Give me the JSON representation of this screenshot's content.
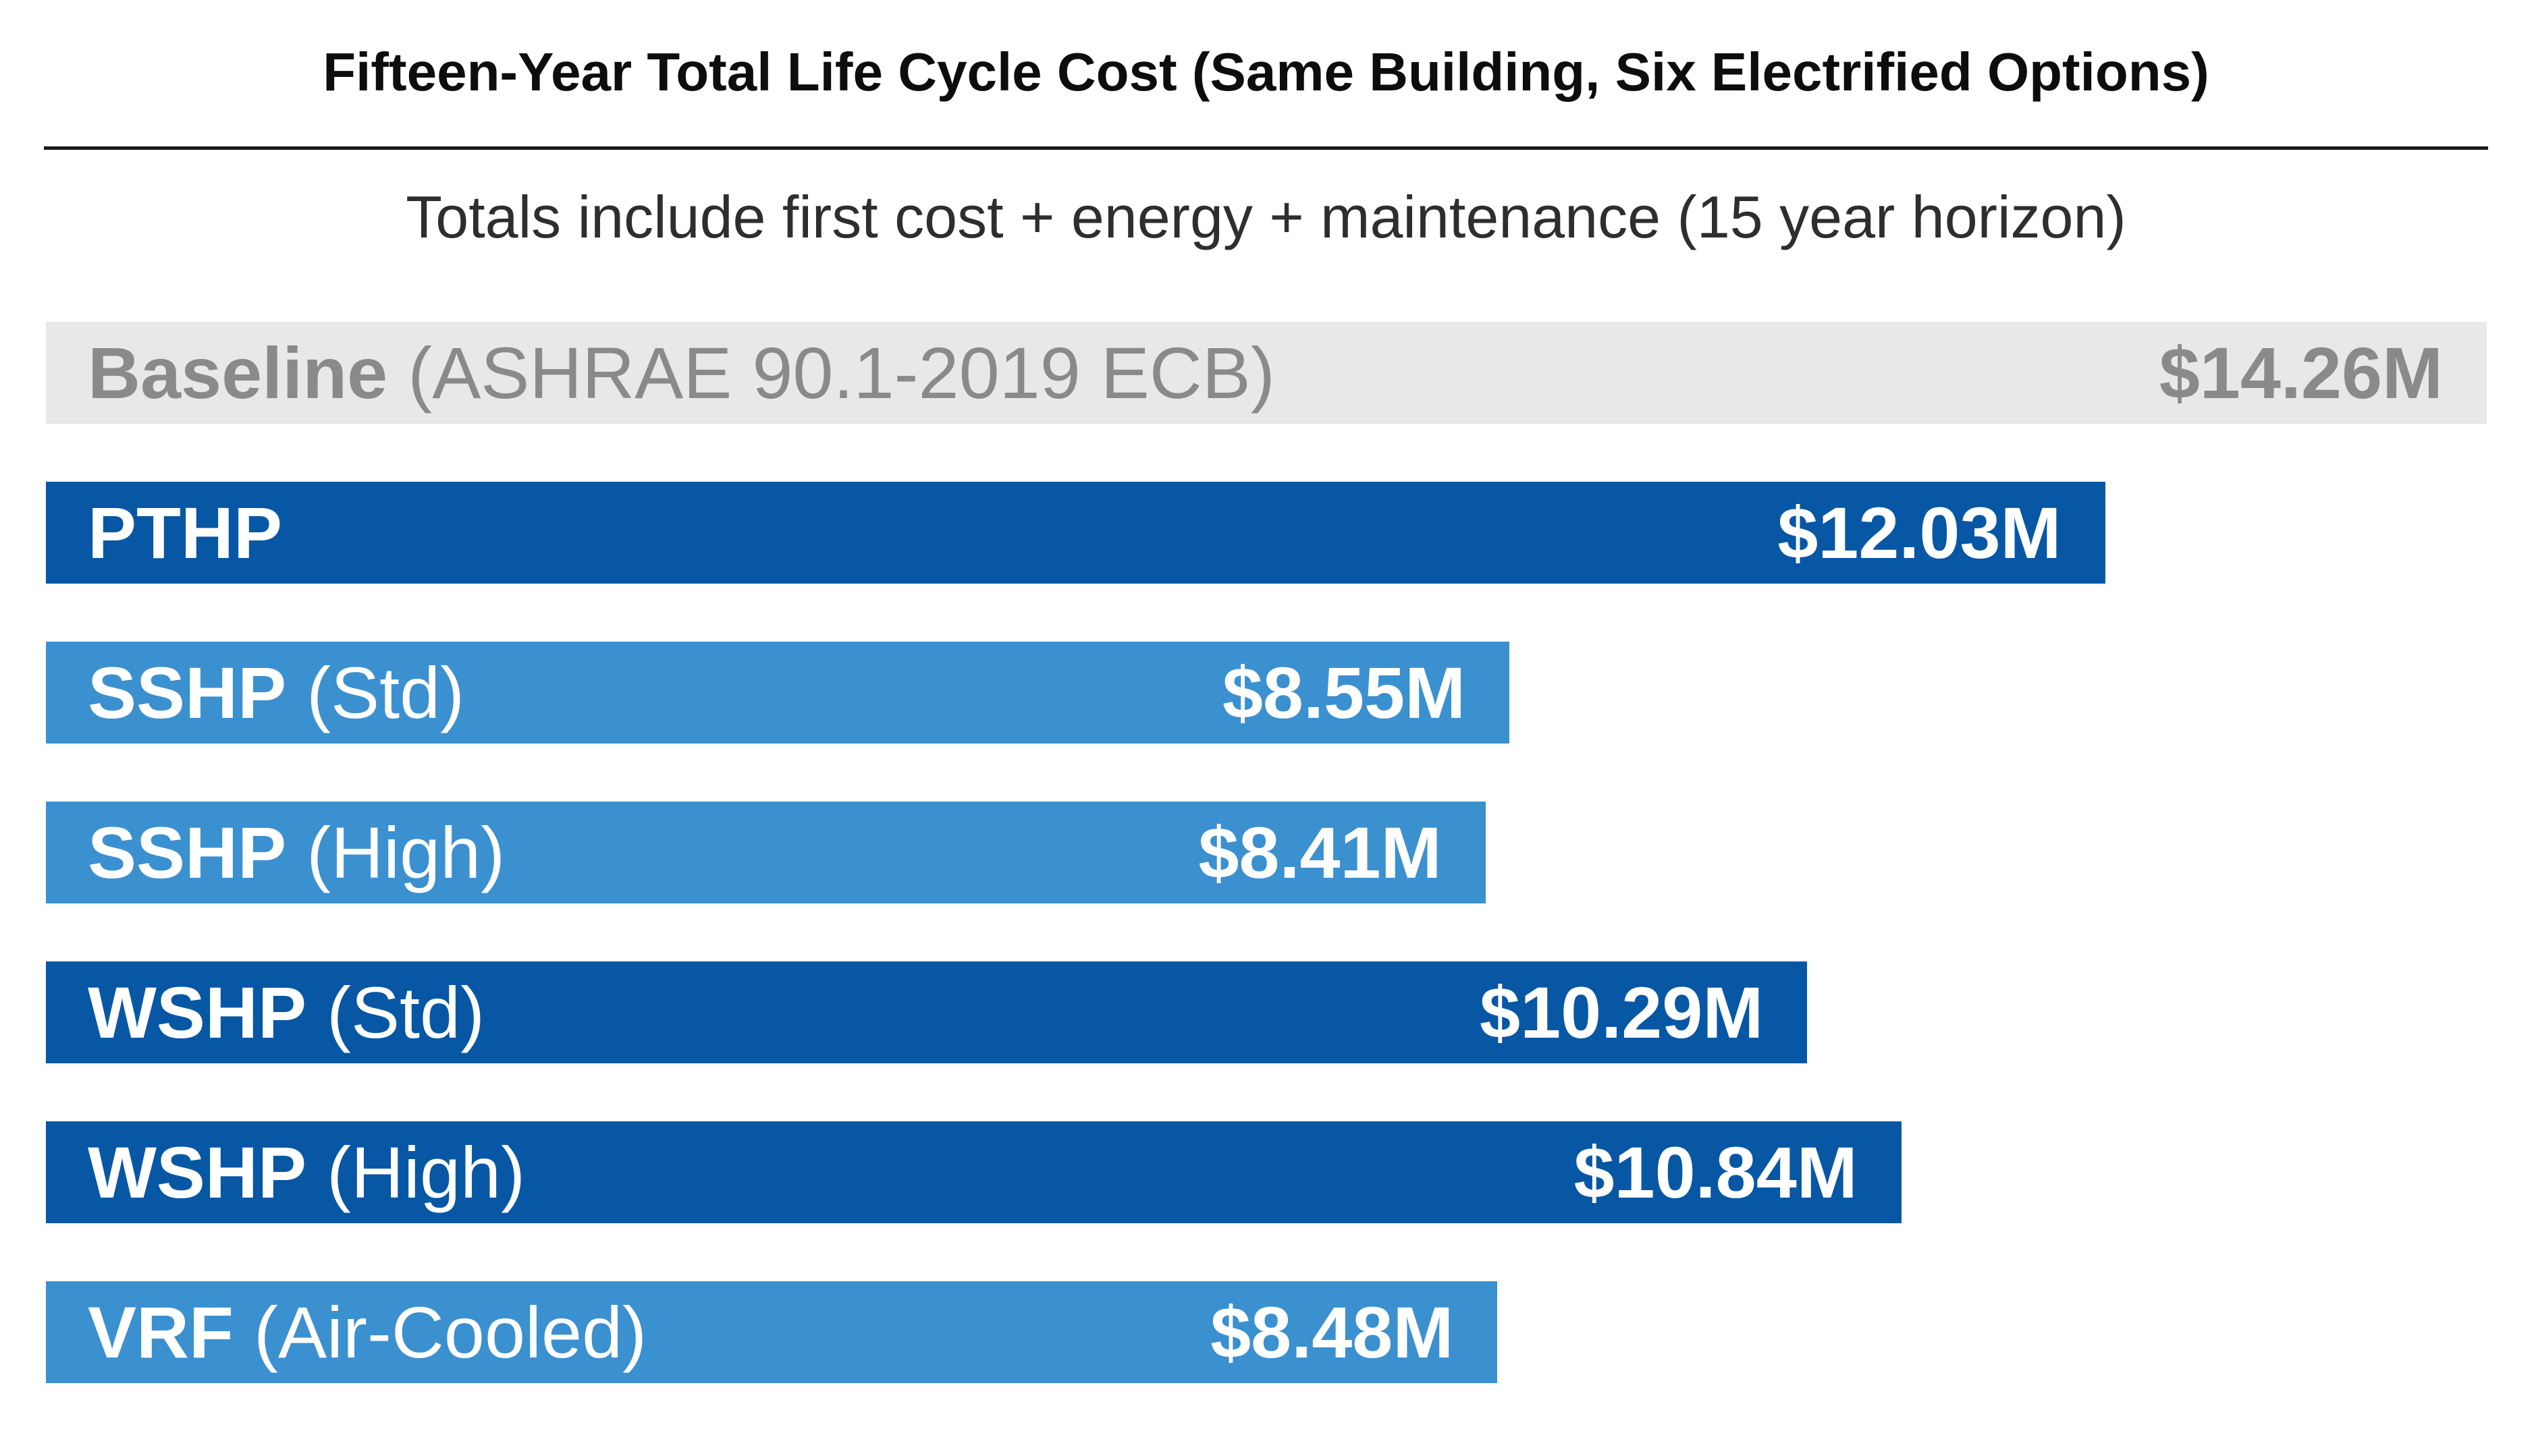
{
  "header": {
    "title": "Fifteen-Year Total Life Cycle Cost (Same Building, Six Electrified Options)",
    "subtitle": "Totals include first cost + energy + maintenance (15 year horizon)"
  },
  "colors": {
    "dark_blue": "#0757a5",
    "light_blue": "#3b90d0",
    "baseline_bg": "#e8e7e9",
    "baseline_text": "#8a898c",
    "bar_text": "#ffffff",
    "divider": "#1a1a1a"
  },
  "chart_data": {
    "type": "bar",
    "orientation": "horizontal",
    "title": "Fifteen-Year Total Life Cycle Cost (Same Building, Six Electrified Options)",
    "subtitle": "Totals include first cost + energy + maintenance (15 year horizon)",
    "unit": "USD millions (15-year total life cycle cost)",
    "xlim": [
      0,
      14.26
    ],
    "grid": false,
    "legend": "none",
    "value_labels": "inside-right",
    "categories": [
      "Baseline (ASHRAE 90.1-2019 ECB)",
      "PTHP",
      "SSHP (Std)",
      "SSHP (High)",
      "WSHP (Std)",
      "WSHP (High)",
      "VRF (Air-Cooled)"
    ],
    "values": [
      14.26,
      12.03,
      8.55,
      8.41,
      10.29,
      10.84,
      8.48
    ],
    "bars": [
      {
        "name": "baseline",
        "label": "Baseline",
        "qualifier": "(ASHRAE 90.1-2019 ECB)",
        "value": 14.26,
        "value_label": "$14.26M",
        "style": "baseline"
      },
      {
        "name": "pthp",
        "label": "PTHP",
        "qualifier": "",
        "value": 12.03,
        "value_label": "$12.03M",
        "style": "dark"
      },
      {
        "name": "sshp-std",
        "label": "SSHP",
        "qualifier": "(Std)",
        "value": 8.55,
        "value_label": "$8.55M",
        "style": "light"
      },
      {
        "name": "sshp-high",
        "label": "SSHP",
        "qualifier": "(High)",
        "value": 8.41,
        "value_label": "$8.41M",
        "style": "light"
      },
      {
        "name": "wshp-std",
        "label": "WSHP",
        "qualifier": "(Std)",
        "value": 10.29,
        "value_label": "$10.29M",
        "style": "dark"
      },
      {
        "name": "wshp-high",
        "label": "WSHP",
        "qualifier": "(High)",
        "value": 10.84,
        "value_label": "$10.84M",
        "style": "dark"
      },
      {
        "name": "vrf-air-cooled",
        "label": "VRF",
        "qualifier": "(Air-Cooled)",
        "value": 8.48,
        "value_label": "$8.48M",
        "style": "light"
      }
    ]
  }
}
